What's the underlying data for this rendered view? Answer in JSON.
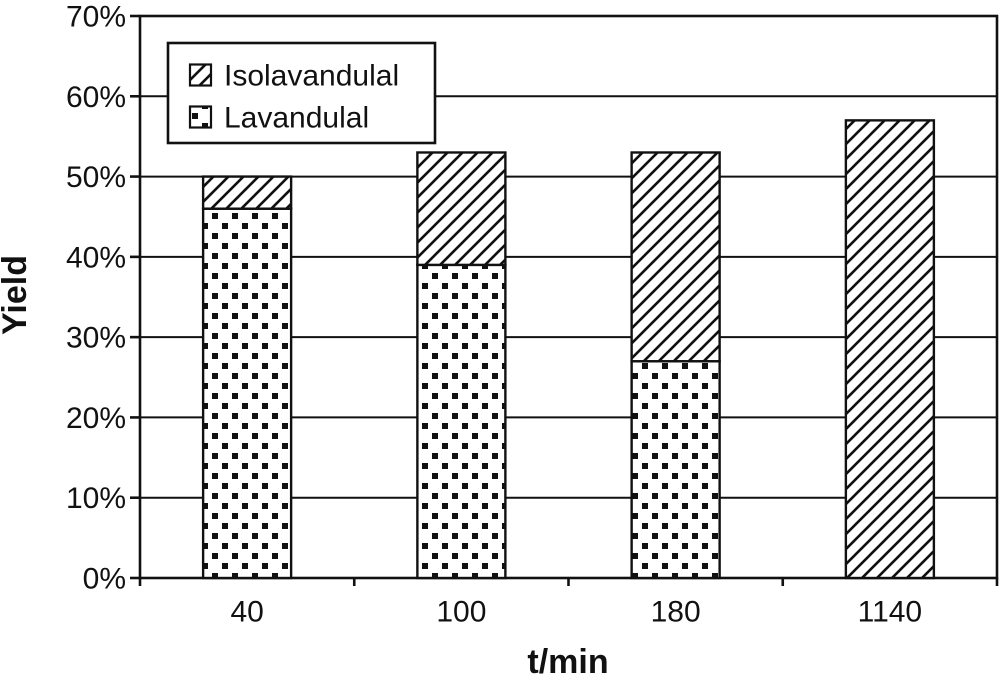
{
  "chart_data": {
    "type": "bar",
    "stacked": true,
    "title": "",
    "xlabel": "t/min",
    "ylabel": "Yield",
    "categories": [
      "40",
      "100",
      "180",
      "1140"
    ],
    "series": [
      {
        "name": "Lavandulal",
        "pattern": "dots",
        "values": [
          46,
          39,
          27,
          0
        ]
      },
      {
        "name": "Isolavandulal",
        "pattern": "hatch",
        "values": [
          4,
          14,
          26,
          57
        ]
      }
    ],
    "totals": [
      50,
      53,
      53,
      57
    ],
    "ylim": [
      0,
      70
    ],
    "y_tick_step": 10,
    "y_tick_labels": [
      "0%",
      "10%",
      "20%",
      "30%",
      "40%",
      "50%",
      "60%",
      "70%"
    ],
    "grid": true,
    "legend": {
      "position": "top-left",
      "entries": [
        {
          "label": "Isolavandulal",
          "pattern": "hatch"
        },
        {
          "label": "Lavandulal",
          "pattern": "dots"
        }
      ]
    },
    "colors": {
      "ink": "#111111",
      "background": "#ffffff"
    }
  }
}
